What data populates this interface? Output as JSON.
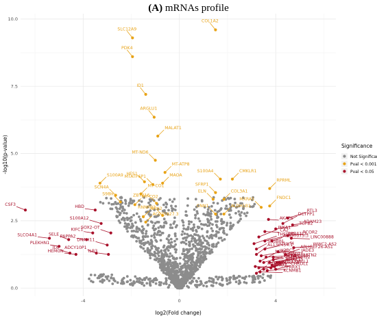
{
  "chart_data": {
    "type": "scatter",
    "title_prefix": "(A)",
    "title_text": " mRNAs profile",
    "xlabel": "log2(Fold change)",
    "ylabel": "-log10(p-value)",
    "xlim": [
      -6.6,
      6.5
    ],
    "ylim": [
      -0.3,
      10.2
    ],
    "xticks": [
      -4,
      0,
      4
    ],
    "yticks": [
      0.0,
      2.5,
      5.0,
      7.5,
      10.0
    ],
    "ytick_labels": [
      "0.0",
      "2.5",
      "5.0",
      "7.5",
      "10.0"
    ],
    "grid": true,
    "legend": {
      "title": "Significance",
      "position": "right",
      "entries": [
        {
          "label": "Not Significant",
          "color": "#8c8c8c"
        },
        {
          "label": "Pval < 0.001",
          "color": "#e8a317"
        },
        {
          "label": "Pval < 0.05",
          "color": "#a8102a"
        }
      ]
    },
    "colors": {
      "ns": "#8c8c8c",
      "p001": "#e8a317",
      "p05": "#a8102a"
    },
    "labeled_genes": [
      {
        "gene": "SLC12A9",
        "x": -1.95,
        "y": 9.3,
        "group": "p001"
      },
      {
        "gene": "COL1A2",
        "x": 1.5,
        "y": 9.6,
        "group": "p001"
      },
      {
        "gene": "PDK4",
        "x": -1.95,
        "y": 8.6,
        "group": "p001"
      },
      {
        "gene": "ID1",
        "x": -1.4,
        "y": 7.2,
        "group": "p001"
      },
      {
        "gene": "ARGLU1",
        "x": -1.05,
        "y": 6.35,
        "group": "p001"
      },
      {
        "gene": "MALAT1",
        "x": -0.9,
        "y": 5.65,
        "group": "p001"
      },
      {
        "gene": "MT-ND6",
        "x": -1.0,
        "y": 4.75,
        "group": "p001"
      },
      {
        "gene": "MT-ATP8",
        "x": -0.6,
        "y": 4.3,
        "group": "p001"
      },
      {
        "gene": "HES1",
        "x": -1.45,
        "y": 3.95,
        "group": "p001"
      },
      {
        "gene": "MAOA",
        "x": -0.7,
        "y": 3.9,
        "group": "p001"
      },
      {
        "gene": "MTATP6P1",
        "x": -1.1,
        "y": 3.85,
        "group": "p001"
      },
      {
        "gene": "S100A9",
        "x": -3.3,
        "y": 3.9,
        "group": "p001"
      },
      {
        "gene": "SCN4A",
        "x": -2.65,
        "y": 3.45,
        "group": "p001"
      },
      {
        "gene": "MT-CO1",
        "x": -1.6,
        "y": 3.5,
        "group": "p001"
      },
      {
        "gene": "S100A4",
        "x": 1.7,
        "y": 4.05,
        "group": "p001"
      },
      {
        "gene": "CMKLR1",
        "x": 2.2,
        "y": 4.05,
        "group": "p001"
      },
      {
        "gene": "SFRP1",
        "x": 1.5,
        "y": 3.55,
        "group": "p001"
      },
      {
        "gene": "COL3A1",
        "x": 1.85,
        "y": 3.3,
        "group": "p001"
      },
      {
        "gene": "ELN",
        "x": 1.4,
        "y": 3.3,
        "group": "p001"
      },
      {
        "gene": "RPRML",
        "x": 3.75,
        "y": 3.7,
        "group": "p001"
      },
      {
        "gene": "MXRA5",
        "x": 3.4,
        "y": 3.0,
        "group": "p001"
      },
      {
        "gene": "FNDC1",
        "x": 3.75,
        "y": 3.05,
        "group": "p001"
      },
      {
        "gene": "S98H",
        "x": -2.45,
        "y": 3.2,
        "group": "p001"
      },
      {
        "gene": "MT-CO2",
        "x": -1.85,
        "y": 3.1,
        "group": "p001"
      },
      {
        "gene": "ZBTB16",
        "x": -0.95,
        "y": 3.15,
        "group": "p001"
      },
      {
        "gene": "NRN2",
        "x": -1.5,
        "y": 2.65,
        "group": "p001"
      },
      {
        "gene": "RNNRB2",
        "x": -0.7,
        "y": 2.7,
        "group": "p001"
      },
      {
        "gene": "AC025827.3",
        "x": -1.4,
        "y": 2.45,
        "group": "p001"
      },
      {
        "gene": "CNN1",
        "x": 1.5,
        "y": 2.75,
        "group": "p001"
      },
      {
        "gene": "ALDH1B1",
        "x": 1.85,
        "y": 2.75,
        "group": "p001"
      },
      {
        "gene": "CSF3",
        "x": -6.4,
        "y": 2.9,
        "group": "p05"
      },
      {
        "gene": "HBD",
        "x": -3.5,
        "y": 2.9,
        "group": "p05"
      },
      {
        "gene": "S100A12",
        "x": -3.25,
        "y": 2.4,
        "group": "p05"
      },
      {
        "gene": "KIFC1",
        "x": -3.6,
        "y": 2.05,
        "group": "p05"
      },
      {
        "gene": "SOX2-OT",
        "x": -2.85,
        "y": 2.05,
        "group": "p05"
      },
      {
        "gene": "SLCO4A1",
        "x": -5.4,
        "y": 1.85,
        "group": "p05"
      },
      {
        "gene": "SELE",
        "x": -4.6,
        "y": 1.8,
        "group": "p05"
      },
      {
        "gene": "PAPPA2",
        "x": -3.85,
        "y": 1.8,
        "group": "p05"
      },
      {
        "gene": "DNAH11",
        "x": -3.0,
        "y": 1.6,
        "group": "p05"
      },
      {
        "gene": "PLEKHN1",
        "x": -5.0,
        "y": 1.55,
        "group": "p05"
      },
      {
        "gene": "IL6",
        "x": -4.55,
        "y": 1.3,
        "group": "p05"
      },
      {
        "gene": "HEMGN",
        "x": -4.3,
        "y": 1.25,
        "group": "p05"
      },
      {
        "gene": "ADCY10P1",
        "x": -3.45,
        "y": 1.3,
        "group": "p05"
      },
      {
        "gene": "ILB3",
        "x": -2.95,
        "y": 1.25,
        "group": "p05"
      },
      {
        "gene": "AKAP6",
        "x": 3.7,
        "y": 2.55,
        "group": "p05"
      },
      {
        "gene": "DCTPP1",
        "x": 4.3,
        "y": 2.4,
        "group": "p05"
      },
      {
        "gene": "RTL3",
        "x": 4.5,
        "y": 2.6,
        "group": "p05"
      },
      {
        "gene": "TGFB2",
        "x": 4.0,
        "y": 2.2,
        "group": "p05"
      },
      {
        "gene": "ADAM23",
        "x": 4.7,
        "y": 2.35,
        "group": "p05"
      },
      {
        "gene": "CA2",
        "x": 3.55,
        "y": 2.1,
        "group": "p05"
      },
      {
        "gene": "INKA1",
        "x": 3.3,
        "y": 1.9,
        "group": "p05"
      },
      {
        "gene": "EPB41L2",
        "x": 3.55,
        "y": 1.75,
        "group": "p05"
      },
      {
        "gene": "AL357075.3",
        "x": 3.85,
        "y": 1.75,
        "group": "p05"
      },
      {
        "gene": "RCOR2",
        "x": 4.5,
        "y": 1.95,
        "group": "p05"
      },
      {
        "gene": "LINC00888",
        "x": 4.65,
        "y": 1.85,
        "group": "p05"
      },
      {
        "gene": "THSD7B",
        "x": 3.1,
        "y": 1.65,
        "group": "p05"
      },
      {
        "gene": "SH3BP1",
        "x": 3.2,
        "y": 1.45,
        "group": "p05"
      },
      {
        "gene": "C1orf4",
        "x": 3.55,
        "y": 1.45,
        "group": "p05"
      },
      {
        "gene": "WWC2-AS2",
        "x": 4.75,
        "y": 1.5,
        "group": "p05"
      },
      {
        "gene": "JADE3",
        "x": 4.1,
        "y": 1.35,
        "group": "p05"
      },
      {
        "gene": "AL136454.1",
        "x": 3.2,
        "y": 1.25,
        "group": "p05"
      },
      {
        "gene": "ARHGEF26-AS1",
        "x": 4.4,
        "y": 1.25,
        "group": "p05"
      },
      {
        "gene": "H2BC5",
        "x": 3.4,
        "y": 1.2,
        "group": "p05"
      },
      {
        "gene": "VAC14",
        "x": 3.6,
        "y": 1.15,
        "group": "p05"
      },
      {
        "gene": "MTG1",
        "x": 3.9,
        "y": 1.15,
        "group": "p05"
      },
      {
        "gene": "NDNF",
        "x": 3.35,
        "y": 1.0,
        "group": "p05"
      },
      {
        "gene": "TSPAN1",
        "x": 3.5,
        "y": 0.95,
        "group": "p05"
      },
      {
        "gene": "PCDH12",
        "x": 3.75,
        "y": 0.95,
        "group": "p05"
      },
      {
        "gene": "GREM1",
        "x": 3.9,
        "y": 1.05,
        "group": "p05"
      },
      {
        "gene": "COBLL1",
        "x": 4.05,
        "y": 0.95,
        "group": "p05"
      },
      {
        "gene": "MEGF10",
        "x": 3.85,
        "y": 0.85,
        "group": "p05"
      },
      {
        "gene": "ASTN2",
        "x": 4.15,
        "y": 0.95,
        "group": "p05"
      },
      {
        "gene": "ADRA1A",
        "x": 3.8,
        "y": 0.75,
        "group": "p05"
      },
      {
        "gene": "PCSK1",
        "x": 3.3,
        "y": 0.75,
        "group": "p05"
      },
      {
        "gene": "ANO1",
        "x": 3.15,
        "y": 0.8,
        "group": "p05"
      },
      {
        "gene": "LRRC15",
        "x": 3.5,
        "y": 0.7,
        "group": "p05"
      },
      {
        "gene": "ECM2",
        "x": 3.95,
        "y": 0.8,
        "group": "p05"
      },
      {
        "gene": "CHRDL1",
        "x": 4.0,
        "y": 0.7,
        "group": "p05"
      },
      {
        "gene": "PRRX1",
        "x": 3.65,
        "y": 0.65,
        "group": "p05"
      },
      {
        "gene": "KCNMB1",
        "x": 3.35,
        "y": 0.6,
        "group": "p05"
      },
      {
        "gene": "HAND2",
        "x": 3.2,
        "y": 0.55,
        "group": "p05"
      }
    ],
    "label_positions": {
      "SLC12A9": {
        "dx": 0,
        "dy": -1,
        "anchor": "middle"
      },
      "COL1A2": {
        "dx": 0,
        "dy": -1,
        "anchor": "middle"
      },
      "PDK4": {
        "dx": 0,
        "dy": -1,
        "anchor": "middle"
      },
      "ID1": {
        "dx": 0,
        "dy": -1,
        "anchor": "middle"
      },
      "ARGLU1": {
        "dx": 0,
        "dy": -1,
        "anchor": "middle"
      },
      "MALAT1": {
        "dx": 0,
        "dy": -1,
        "anchor": "middle"
      }
    },
    "annotations_present": true
  }
}
